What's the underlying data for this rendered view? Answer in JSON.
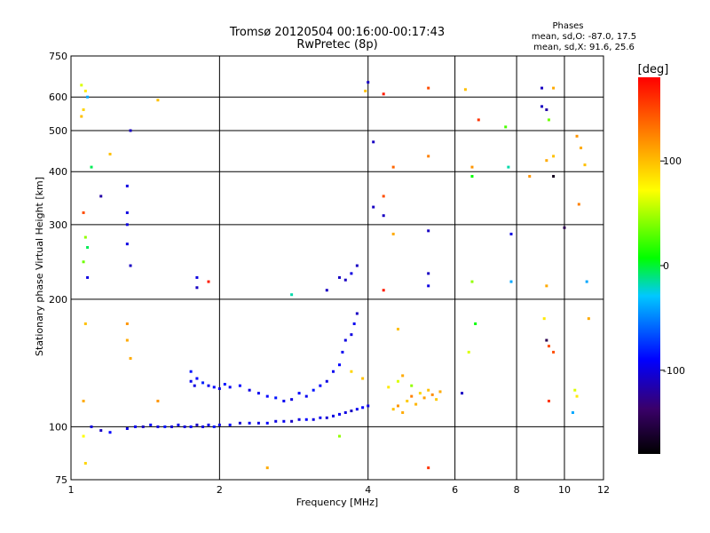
{
  "header": {
    "title_line1": "Tromsø 20120504 00:16:00-00:17:43",
    "title_line2": "RwPretec (8p)"
  },
  "phases_box": {
    "heading": "Phases",
    "line1": "mean, sd,O: -87.0, 17.5",
    "line2": "mean, sd,X: 91.6, 25.6"
  },
  "colorbar": {
    "unit_label": "[deg]",
    "ticks": [
      {
        "value": 100,
        "label": "100"
      },
      {
        "value": 0,
        "label": "0"
      },
      {
        "value": -100,
        "label": "-100"
      }
    ],
    "range": [
      -180,
      180
    ]
  },
  "chart_data": {
    "type": "scatter",
    "title": "Tromsø 20120504 00:16:00-00:17:43",
    "subtitle": "RwPretec (8p)",
    "xlabel": "Frequency [MHz]",
    "ylabel": "Stationary phase Virtual Height [km]",
    "xscale": "log",
    "yscale": "log",
    "xlim": [
      1,
      12
    ],
    "ylim": [
      75,
      750
    ],
    "xticks": [
      {
        "value": 1,
        "label": "1"
      },
      {
        "value": 2,
        "label": "2"
      },
      {
        "value": 4,
        "label": "4"
      },
      {
        "value": 6,
        "label": "6"
      },
      {
        "value": 8,
        "label": "8"
      },
      {
        "value": 10,
        "label": "10"
      },
      {
        "value": 12,
        "label": "12"
      }
    ],
    "yticks": [
      {
        "value": 75,
        "label": "75"
      },
      {
        "value": 100,
        "label": "100"
      },
      {
        "value": 200,
        "label": "200"
      },
      {
        "value": 300,
        "label": "300"
      },
      {
        "value": 400,
        "label": "400"
      },
      {
        "value": 500,
        "label": "500"
      },
      {
        "value": 600,
        "label": "600"
      },
      {
        "value": 750,
        "label": "750"
      }
    ],
    "grid": true,
    "color_scale": "phase",
    "series": [
      {
        "name": "O-trace",
        "points": [
          [
            1.1,
            100,
            -100
          ],
          [
            1.15,
            98,
            -110
          ],
          [
            1.2,
            97,
            -90
          ],
          [
            1.3,
            99,
            -100
          ],
          [
            1.35,
            100,
            -95
          ],
          [
            1.4,
            100,
            -110
          ],
          [
            1.45,
            101,
            -90
          ],
          [
            1.5,
            100,
            -100
          ],
          [
            1.55,
            100,
            -85
          ],
          [
            1.6,
            100,
            -105
          ],
          [
            1.65,
            101,
            -95
          ],
          [
            1.7,
            100,
            -100
          ],
          [
            1.75,
            100,
            -90
          ],
          [
            1.8,
            101,
            -110
          ],
          [
            1.85,
            100,
            -100
          ],
          [
            1.9,
            101,
            -95
          ],
          [
            1.95,
            100,
            -85
          ],
          [
            2.0,
            101,
            -100
          ],
          [
            2.1,
            101,
            -90
          ],
          [
            2.2,
            102,
            -105
          ],
          [
            2.3,
            102,
            -95
          ],
          [
            2.4,
            102,
            -100
          ],
          [
            2.5,
            102,
            -90
          ],
          [
            2.6,
            103,
            -100
          ],
          [
            2.7,
            103,
            -95
          ],
          [
            2.8,
            103,
            -110
          ],
          [
            2.9,
            104,
            -100
          ],
          [
            3.0,
            104,
            -90
          ],
          [
            3.1,
            104,
            -100
          ],
          [
            3.2,
            105,
            -95
          ],
          [
            3.3,
            105,
            -105
          ],
          [
            3.4,
            106,
            -100
          ],
          [
            3.5,
            107,
            -95
          ],
          [
            3.6,
            108,
            -100
          ],
          [
            3.7,
            109,
            -110
          ],
          [
            3.8,
            110,
            -95
          ],
          [
            3.9,
            111,
            -90
          ],
          [
            4.0,
            112,
            -100
          ]
        ]
      },
      {
        "name": "F-region trace",
        "points": [
          [
            1.75,
            135,
            -85
          ],
          [
            1.75,
            128,
            -95
          ],
          [
            1.78,
            125,
            -100
          ],
          [
            1.8,
            130,
            -90
          ],
          [
            1.85,
            127,
            -80
          ],
          [
            1.9,
            125,
            -95
          ],
          [
            1.95,
            124,
            -90
          ],
          [
            2.0,
            123,
            -100
          ],
          [
            2.05,
            126,
            -85
          ],
          [
            2.1,
            124,
            -95
          ],
          [
            2.2,
            125,
            -90
          ],
          [
            2.3,
            122,
            -100
          ],
          [
            2.4,
            120,
            -95
          ],
          [
            2.5,
            118,
            -90
          ],
          [
            2.6,
            117,
            -85
          ],
          [
            2.7,
            115,
            -95
          ],
          [
            2.8,
            116,
            -100
          ],
          [
            2.9,
            120,
            -90
          ],
          [
            3.0,
            118,
            -95
          ],
          [
            3.1,
            122,
            -85
          ],
          [
            3.2,
            125,
            -90
          ],
          [
            3.3,
            128,
            -100
          ],
          [
            3.4,
            135,
            -95
          ],
          [
            3.5,
            140,
            -90
          ],
          [
            3.55,
            150,
            -95
          ],
          [
            3.6,
            160,
            -100
          ],
          [
            3.7,
            165,
            -100
          ],
          [
            3.75,
            175,
            -95
          ],
          [
            3.8,
            185,
            -110
          ]
        ]
      },
      {
        "name": "X-trace",
        "points": [
          [
            4.5,
            110,
            100
          ],
          [
            4.6,
            112,
            120
          ],
          [
            4.7,
            108,
            110
          ],
          [
            4.8,
            115,
            95
          ],
          [
            4.9,
            118,
            130
          ],
          [
            5.0,
            113,
            105
          ],
          [
            5.1,
            120,
            90
          ],
          [
            5.2,
            117,
            115
          ],
          [
            5.3,
            122,
            100
          ],
          [
            5.4,
            119,
            125
          ],
          [
            5.5,
            116,
            95
          ],
          [
            5.6,
            121,
            110
          ],
          [
            4.4,
            124,
            80
          ],
          [
            4.6,
            128,
            60
          ],
          [
            4.9,
            125,
            40
          ],
          [
            4.7,
            132,
            110
          ],
          [
            3.9,
            130,
            100
          ],
          [
            3.7,
            135,
            90
          ]
        ]
      },
      {
        "name": "scattered echoes",
        "points": [
          [
            1.05,
            640,
            60
          ],
          [
            1.07,
            620,
            80
          ],
          [
            1.08,
            600,
            -40
          ],
          [
            1.06,
            560,
            90
          ],
          [
            1.05,
            540,
            100
          ],
          [
            1.1,
            410,
            -10
          ],
          [
            1.06,
            320,
            150
          ],
          [
            1.07,
            280,
            40
          ],
          [
            1.08,
            265,
            -10
          ],
          [
            1.06,
            245,
            30
          ],
          [
            1.08,
            225,
            -100
          ],
          [
            1.07,
            175,
            100
          ],
          [
            1.06,
            115,
            110
          ],
          [
            1.06,
            95,
            70
          ],
          [
            1.07,
            82,
            90
          ],
          [
            1.2,
            440,
            100
          ],
          [
            1.3,
            370,
            -100
          ],
          [
            1.3,
            320,
            -100
          ],
          [
            1.3,
            300,
            -100
          ],
          [
            1.3,
            270,
            -100
          ],
          [
            1.32,
            240,
            -110
          ],
          [
            1.32,
            500,
            -110
          ],
          [
            1.15,
            350,
            -120
          ],
          [
            1.5,
            590,
            100
          ],
          [
            1.3,
            175,
            120
          ],
          [
            1.3,
            160,
            110
          ],
          [
            1.32,
            145,
            110
          ],
          [
            1.5,
            115,
            120
          ],
          [
            1.8,
            225,
            -100
          ],
          [
            1.8,
            213,
            -110
          ],
          [
            1.9,
            220,
            170
          ],
          [
            2.5,
            80,
            110
          ],
          [
            2.8,
            205,
            -20
          ],
          [
            3.3,
            210,
            -110
          ],
          [
            3.5,
            225,
            -110
          ],
          [
            3.6,
            222,
            -110
          ],
          [
            3.7,
            230,
            -100
          ],
          [
            3.8,
            240,
            -110
          ],
          [
            4.0,
            650,
            -110
          ],
          [
            3.95,
            620,
            100
          ],
          [
            4.1,
            470,
            -110
          ],
          [
            4.1,
            330,
            -110
          ],
          [
            4.3,
            610,
            170
          ],
          [
            4.3,
            350,
            150
          ],
          [
            4.3,
            315,
            -110
          ],
          [
            4.3,
            210,
            170
          ],
          [
            4.5,
            410,
            140
          ],
          [
            4.5,
            285,
            110
          ],
          [
            4.6,
            170,
            100
          ],
          [
            5.3,
            630,
            150
          ],
          [
            5.3,
            435,
            130
          ],
          [
            5.3,
            290,
            -110
          ],
          [
            5.3,
            230,
            -110
          ],
          [
            5.3,
            215,
            -100
          ],
          [
            5.3,
            80,
            160
          ],
          [
            6.3,
            625,
            100
          ],
          [
            6.5,
            410,
            120
          ],
          [
            6.5,
            390,
            0
          ],
          [
            6.5,
            220,
            40
          ],
          [
            6.6,
            175,
            0
          ],
          [
            6.7,
            530,
            160
          ],
          [
            7.6,
            510,
            20
          ],
          [
            7.7,
            410,
            -20
          ],
          [
            7.8,
            285,
            -100
          ],
          [
            7.8,
            220,
            -40
          ],
          [
            8.5,
            390,
            120
          ],
          [
            9.0,
            630,
            -110
          ],
          [
            9.0,
            570,
            -110
          ],
          [
            9.2,
            560,
            -120
          ],
          [
            9.3,
            530,
            30
          ],
          [
            9.5,
            630,
            110
          ],
          [
            9.5,
            390,
            -170
          ],
          [
            9.2,
            425,
            110
          ],
          [
            9.5,
            435,
            100
          ],
          [
            9.2,
            215,
            110
          ],
          [
            9.1,
            180,
            80
          ],
          [
            9.2,
            160,
            -150
          ],
          [
            9.3,
            155,
            150
          ],
          [
            9.5,
            150,
            150
          ],
          [
            9.3,
            115,
            160
          ],
          [
            10.0,
            295,
            -150
          ],
          [
            10.4,
            108,
            -40
          ],
          [
            10.6,
            485,
            120
          ],
          [
            10.7,
            335,
            130
          ],
          [
            10.8,
            455,
            110
          ],
          [
            11.0,
            415,
            100
          ],
          [
            11.1,
            220,
            -40
          ],
          [
            11.2,
            180,
            110
          ],
          [
            10.5,
            122,
            60
          ],
          [
            10.6,
            118,
            80
          ],
          [
            3.5,
            95,
            40
          ],
          [
            6.4,
            150,
            60
          ],
          [
            6.2,
            120,
            -110
          ]
        ]
      }
    ]
  }
}
